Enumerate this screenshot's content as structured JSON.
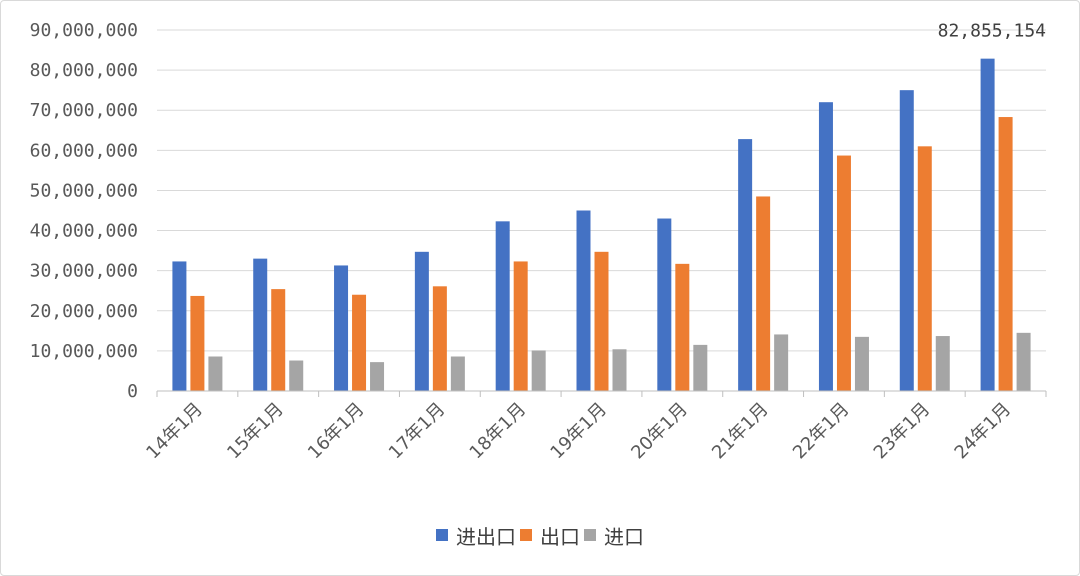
{
  "chart_data": {
    "type": "bar",
    "categories": [
      "14年1月",
      "15年1月",
      "16年1月",
      "17年1月",
      "18年1月",
      "19年1月",
      "20年1月",
      "21年1月",
      "22年1月",
      "23年1月",
      "24年1月"
    ],
    "series": [
      {
        "name": "进出口",
        "color": "#4472C4",
        "values": [
          32300000,
          33000000,
          31300000,
          34700000,
          42300000,
          45000000,
          43000000,
          62800000,
          72000000,
          75000000,
          82855154
        ]
      },
      {
        "name": "出口",
        "color": "#ED7D31",
        "values": [
          23700000,
          25400000,
          24000000,
          26100000,
          32300000,
          34700000,
          31700000,
          48500000,
          58700000,
          61000000,
          68300000
        ]
      },
      {
        "name": "进口",
        "color": "#A5A5A5",
        "values": [
          8600000,
          7600000,
          7200000,
          8600000,
          10100000,
          10400000,
          11500000,
          14100000,
          13500000,
          13700000,
          14500000
        ]
      }
    ],
    "y_ticks": [
      "0",
      "10,000,000",
      "20,000,000",
      "30,000,000",
      "40,000,000",
      "50,000,000",
      "60,000,000",
      "70,000,000",
      "80,000,000",
      "90,000,000"
    ],
    "ylim": [
      0,
      90000000
    ],
    "grid": true,
    "legend_position": "bottom",
    "data_labels": [
      {
        "series": 0,
        "index": 10,
        "text": "82,855,154"
      }
    ]
  }
}
